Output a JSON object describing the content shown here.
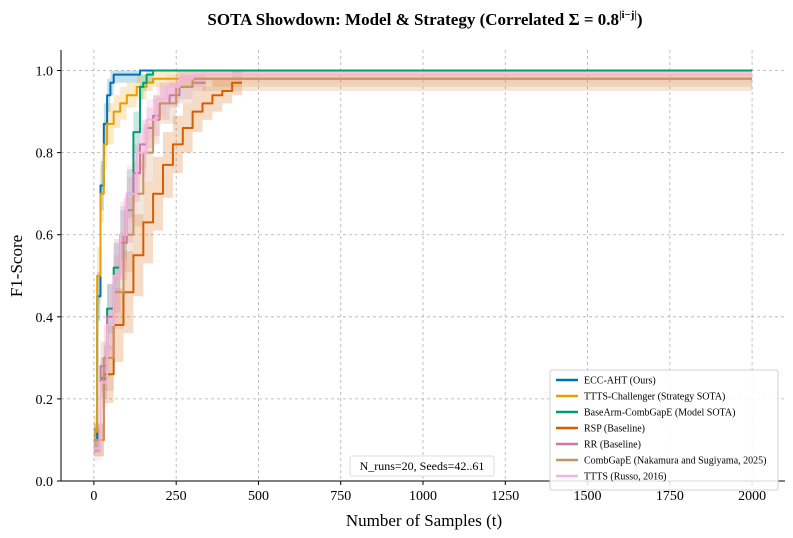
{
  "chart_data": {
    "type": "line",
    "title": "SOTA Showdown: Model & Strategy (Correlated Σ = 0.8",
    "title_sup": "|i−j|",
    "title_end": ")",
    "xlabel": "Number of Samples (t)",
    "ylabel": "F1-Score",
    "xlim": [
      -100,
      2100
    ],
    "ylim": [
      0.0,
      1.05
    ],
    "xticks": [
      0,
      250,
      500,
      750,
      1000,
      1250,
      1500,
      1750,
      2000
    ],
    "yticks": [
      0.0,
      0.2,
      0.4,
      0.6,
      0.8,
      1.0
    ],
    "xtick_labels": [
      "0",
      "250",
      "500",
      "750",
      "1000",
      "1250",
      "1500",
      "1750",
      "2000"
    ],
    "ytick_labels": [
      "0.0",
      "0.2",
      "0.4",
      "0.6",
      "0.8",
      "1.0"
    ],
    "grid": true,
    "legend_position": "lower-right",
    "annotation": "N_runs=20, Seeds=42..61",
    "series": [
      {
        "name": "ECC-AHT (Ours)",
        "color": "#0072b2",
        "style": "solid",
        "x": [
          0,
          10,
          20,
          30,
          40,
          50,
          60,
          70,
          80,
          100,
          140,
          2000
        ],
        "y": [
          0.1,
          0.45,
          0.72,
          0.87,
          0.94,
          0.97,
          0.99,
          0.99,
          0.99,
          0.99,
          1.0,
          1.0
        ],
        "band": [
          0.03,
          0.06,
          0.06,
          0.05,
          0.04,
          0.03,
          0.02,
          0.02,
          0.02,
          0.02,
          0.0,
          0.0
        ]
      },
      {
        "name": "TTTS-Challenger (Strategy SOTA)",
        "color": "#e69f00",
        "style": "solid",
        "x": [
          0,
          10,
          20,
          30,
          40,
          60,
          80,
          100,
          130,
          160,
          180,
          2000
        ],
        "y": [
          0.12,
          0.5,
          0.7,
          0.82,
          0.87,
          0.9,
          0.92,
          0.94,
          0.96,
          0.97,
          0.98,
          0.98
        ],
        "band": [
          0.04,
          0.07,
          0.07,
          0.06,
          0.05,
          0.04,
          0.04,
          0.03,
          0.03,
          0.02,
          0.02,
          0.02
        ]
      },
      {
        "name": "BaseArm-CombGapE (Model SOTA)",
        "color": "#009e73",
        "style": "solid",
        "x": [
          0,
          20,
          40,
          60,
          80,
          100,
          120,
          140,
          150,
          160,
          180,
          440,
          2000
        ],
        "y": [
          0.1,
          0.25,
          0.42,
          0.52,
          0.6,
          0.7,
          0.85,
          0.96,
          0.97,
          0.99,
          1.0,
          1.0,
          1.0
        ],
        "band": [
          0.03,
          0.05,
          0.06,
          0.06,
          0.06,
          0.06,
          0.05,
          0.03,
          0.02,
          0.02,
          0.0,
          0.0,
          0.0
        ]
      },
      {
        "name": "RSP (Baseline)",
        "color": "#d55e00",
        "style": "solid",
        "x": [
          0,
          30,
          60,
          90,
          120,
          150,
          180,
          210,
          240,
          270,
          300,
          330,
          360,
          390,
          420,
          450
        ],
        "y": [
          0.1,
          0.26,
          0.38,
          0.46,
          0.55,
          0.63,
          0.7,
          0.77,
          0.82,
          0.86,
          0.9,
          0.92,
          0.94,
          0.95,
          0.97,
          0.97
        ],
        "band": [
          0.04,
          0.07,
          0.09,
          0.1,
          0.1,
          0.1,
          0.09,
          0.08,
          0.07,
          0.06,
          0.05,
          0.04,
          0.04,
          0.03,
          0.03,
          0.03
        ]
      },
      {
        "name": "RR (Baseline)",
        "color": "#cc79a7",
        "style": "solid",
        "x": [
          0,
          20,
          40,
          60,
          80,
          100,
          120,
          140,
          160,
          180,
          200,
          230,
          260,
          300,
          340
        ],
        "y": [
          0.1,
          0.28,
          0.4,
          0.5,
          0.58,
          0.66,
          0.75,
          0.82,
          0.86,
          0.89,
          0.92,
          0.94,
          0.96,
          0.97,
          0.97
        ],
        "band": [
          0.03,
          0.06,
          0.08,
          0.09,
          0.09,
          0.08,
          0.07,
          0.06,
          0.05,
          0.05,
          0.04,
          0.03,
          0.03,
          0.02,
          0.02
        ]
      },
      {
        "name": "CombGapE (Nakamura and Sugiyama, 2025)",
        "color": "#ca9161",
        "style": "solid",
        "x": [
          0,
          30,
          60,
          90,
          120,
          150,
          180,
          200,
          250,
          300,
          2000
        ],
        "y": [
          0.1,
          0.3,
          0.46,
          0.6,
          0.7,
          0.8,
          0.88,
          0.92,
          0.96,
          0.98,
          0.98
        ],
        "band": [
          0.04,
          0.08,
          0.09,
          0.09,
          0.08,
          0.07,
          0.06,
          0.05,
          0.04,
          0.03,
          0.03
        ]
      },
      {
        "name": "TTTS (Russo, 2016)",
        "color": "#fbafe4",
        "style": "solid",
        "x": [
          0,
          20,
          40,
          60,
          80,
          100,
          130,
          160,
          190,
          220,
          260,
          300,
          2000
        ],
        "y": [
          0.08,
          0.24,
          0.38,
          0.5,
          0.6,
          0.7,
          0.8,
          0.88,
          0.93,
          0.96,
          0.98,
          0.99,
          0.99
        ],
        "band": [
          0.03,
          0.06,
          0.08,
          0.08,
          0.08,
          0.07,
          0.06,
          0.05,
          0.04,
          0.03,
          0.02,
          0.02,
          0.02
        ]
      }
    ]
  }
}
